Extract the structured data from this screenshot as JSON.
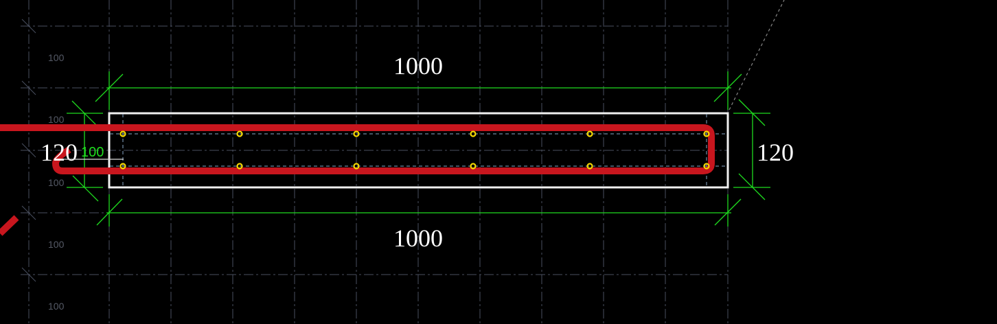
{
  "drawing": {
    "top_dimension": "1000",
    "bottom_dimension": "1000",
    "left_dimension": "120",
    "right_dimension": "120",
    "cover_dimension": "100",
    "grid_labels": [
      "100",
      "100",
      "100",
      "100",
      "100"
    ],
    "rebar_points_per_row": 6
  },
  "colors": {
    "background": "#000000",
    "section_outline": "#f0f0f0",
    "dimension_lines": "#1fdc1f",
    "stirrup": "#c8161e",
    "rebar_points": "#f5d800",
    "grid": "#4a5060"
  }
}
